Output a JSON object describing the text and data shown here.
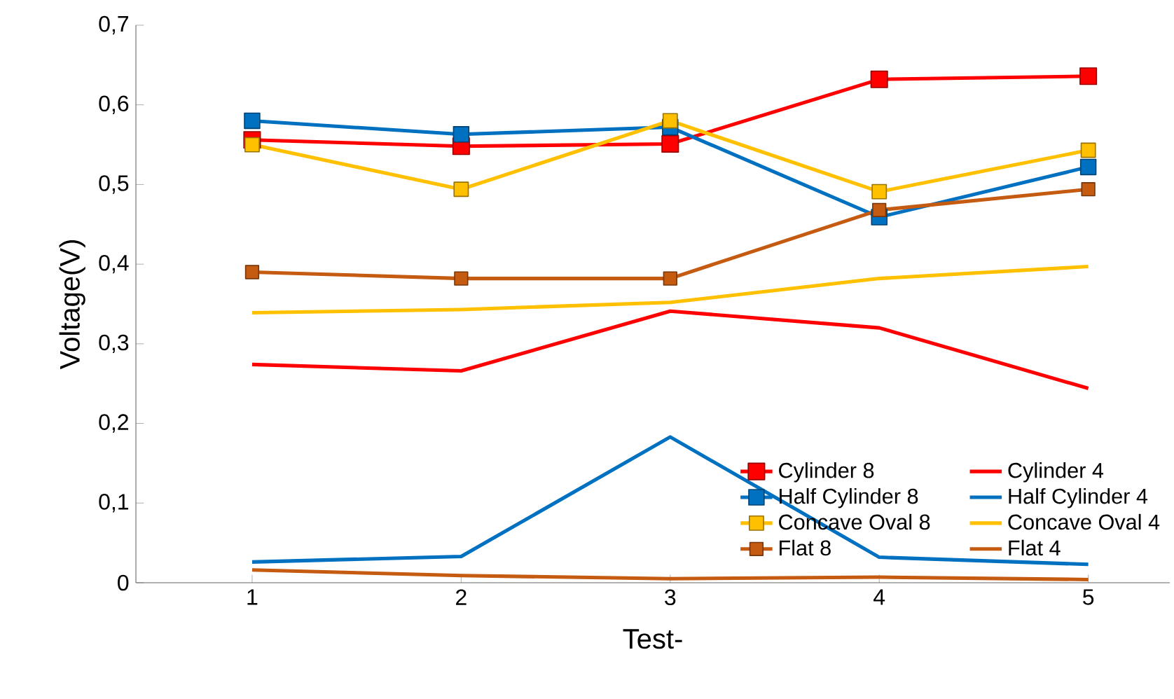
{
  "chart_data": {
    "type": "line",
    "xlabel": "Test-",
    "ylabel": "Voltage(V)",
    "categories": [
      "1",
      "2",
      "3",
      "4",
      "5"
    ],
    "ylim": [
      0,
      0.7
    ],
    "yticks": [
      0,
      {
        "value": 0.1,
        "label": "0,1"
      },
      {
        "value": 0.2,
        "label": "0,2"
      },
      {
        "value": 0.3,
        "label": "0,3"
      },
      {
        "value": 0.4,
        "label": "0,4"
      },
      {
        "value": 0.5,
        "label": "0,5"
      },
      {
        "value": 0.6,
        "label": "0,6"
      },
      {
        "value": 0.7,
        "label": "0,7"
      }
    ],
    "grid": false,
    "legend": "bottom right",
    "series": [
      {
        "name": "Cylinder 8",
        "color": "#ff0000",
        "marker": "square",
        "values": [
          0.556,
          0.548,
          0.551,
          0.632,
          0.636
        ]
      },
      {
        "name": "Cylinder 4",
        "color": "#ff0000",
        "marker": "none",
        "values": [
          0.274,
          0.266,
          0.341,
          0.32,
          0.244
        ]
      },
      {
        "name": "Half Cylinder 8",
        "color": "#0070c0",
        "marker": "square",
        "values": [
          0.58,
          0.563,
          0.572,
          0.459,
          0.522
        ]
      },
      {
        "name": "Half Cylinder 4",
        "color": "#0070c0",
        "marker": "none",
        "values": [
          0.026,
          0.033,
          0.183,
          0.032,
          0.023
        ]
      },
      {
        "name": "Concave Oval 8",
        "color": "#ffc000",
        "marker": "square",
        "values": [
          0.55,
          0.494,
          0.58,
          0.491,
          0.543
        ]
      },
      {
        "name": "Concave Oval 4",
        "color": "#ffc000",
        "marker": "none",
        "values": [
          0.339,
          0.343,
          0.352,
          0.382,
          0.397
        ]
      },
      {
        "name": "Flat 8",
        "color": "#c55a11",
        "marker": "square",
        "values": [
          0.39,
          0.382,
          0.382,
          0.468,
          0.494
        ]
      },
      {
        "name": "Flat 4",
        "color": "#c55a11",
        "marker": "none",
        "values": [
          0.016,
          0.009,
          0.005,
          0.007,
          0.004
        ]
      }
    ]
  }
}
